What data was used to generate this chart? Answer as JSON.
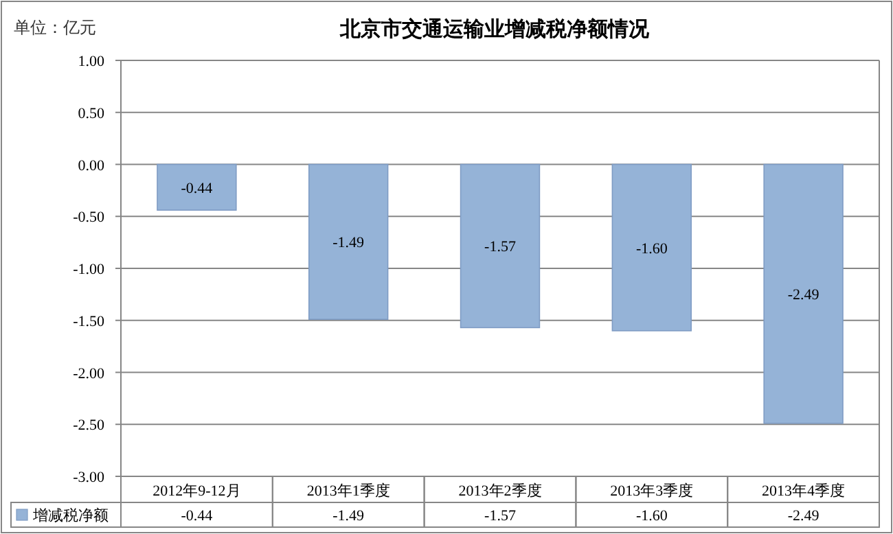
{
  "chart_data": {
    "type": "bar",
    "title": "北京市交通运输业增减税净额情况",
    "ylabel": "单位：亿元",
    "categories": [
      "2012年9-12月",
      "2013年1季度",
      "2013年2季度",
      "2013年3季度",
      "2013年4季度"
    ],
    "series": [
      {
        "name": "增减税净额",
        "color": "#95b3d7",
        "values": [
          -0.44,
          -1.49,
          -1.57,
          -1.6,
          -2.49
        ],
        "value_labels": [
          "-0.44",
          "-1.49",
          "-1.57",
          "-1.60",
          "-2.49"
        ]
      }
    ],
    "ylim": [
      -3,
      1
    ],
    "yticks": [
      {
        "value": 1,
        "label": "1.00"
      },
      {
        "value": 0.5,
        "label": "0.50"
      },
      {
        "value": 0,
        "label": "0.00"
      },
      {
        "value": -0.5,
        "label": "-0.50"
      },
      {
        "value": -1,
        "label": "-1.00"
      },
      {
        "value": -1.5,
        "label": "-1.50"
      },
      {
        "value": -2,
        "label": "-2.00"
      },
      {
        "value": -2.5,
        "label": "-2.50"
      },
      {
        "value": -3,
        "label": "-3.00"
      }
    ],
    "grid": "y",
    "legend": "bottom"
  }
}
